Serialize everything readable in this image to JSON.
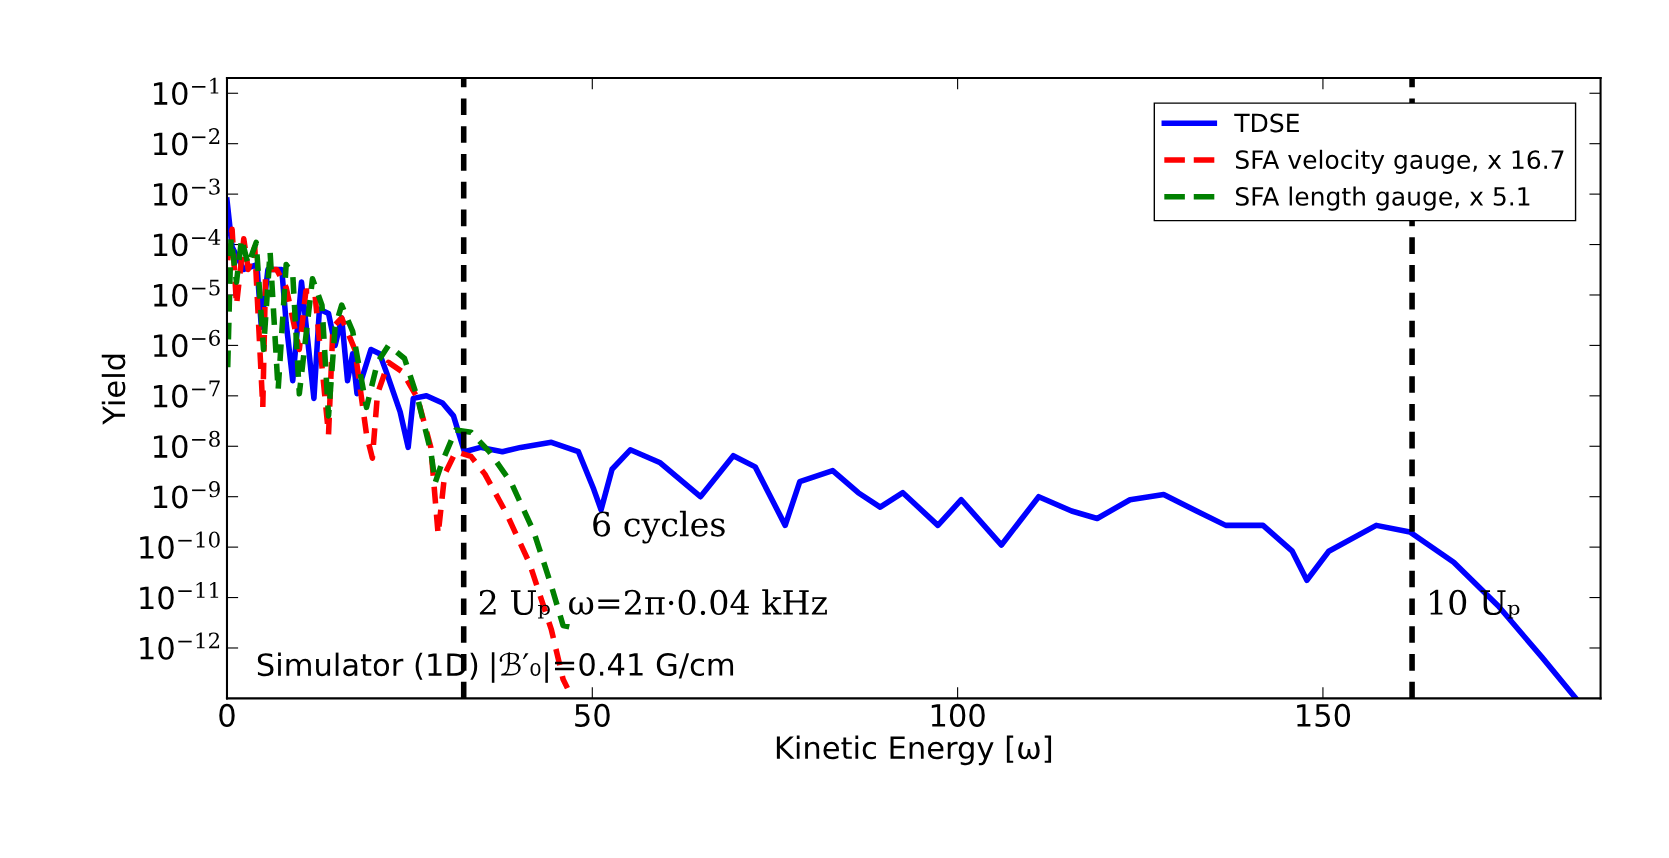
{
  "chart_data": {
    "type": "line",
    "xlabel": "Kinetic Energy [ω]",
    "ylabel": "Yield",
    "log": "y",
    "xlim": [
      0,
      188
    ],
    "ylim": [
      1e-13,
      0.2
    ],
    "xticks": [
      0,
      50,
      100,
      150
    ],
    "yticks": [
      {
        "value": 1e-12,
        "label": "10$^{−12}$"
      },
      {
        "value": 1e-11,
        "label": "10$^{−11}$"
      },
      {
        "value": 1e-10,
        "label": "10$^{−10}$"
      },
      {
        "value": 1e-09,
        "label": "10$^{−9}$"
      },
      {
        "value": 1e-08,
        "label": "10$^{−8}$"
      },
      {
        "value": 1e-07,
        "label": "10$^{−7}$"
      },
      {
        "value": 1e-06,
        "label": "10$^{−6}$"
      },
      {
        "value": 1e-05,
        "label": "10$^{−5}$"
      },
      {
        "value": 0.0001,
        "label": "10$^{−4}$"
      },
      {
        "value": 0.001,
        "label": "10$^{−3}$"
      },
      {
        "value": 0.01,
        "label": "10$^{−2}$"
      },
      {
        "value": 0.1,
        "label": "10$^{−1}$"
      }
    ],
    "grid": false,
    "legend": "top right",
    "marker": "none",
    "series": [
      {
        "name": "TDSE",
        "color": "#0000ff",
        "line_style": "solid",
        "x": [
          0,
          0.7,
          2.3,
          4.1,
          4.7,
          5.6,
          7.5,
          8.1,
          9.0,
          10.2,
          11.9,
          12.65,
          13.9,
          14.8,
          15.7,
          16.5,
          17.2,
          17.8,
          19.7,
          20.9,
          21.8,
          23.7,
          24.8,
          25.5,
          27.3,
          29.5,
          31.0,
          32.5,
          34.7,
          37.7,
          40.2,
          44.4,
          48.1,
          50.2,
          51.2,
          52.7,
          55.2,
          59.3,
          64.8,
          69.3,
          72.3,
          76.4,
          78.4,
          82.9,
          86.4,
          89.4,
          92.5,
          97.3,
          100.5,
          106.0,
          111.1,
          115.6,
          119.1,
          123.6,
          128.2,
          132.7,
          136.7,
          141.8,
          145.8,
          147.8,
          150.8,
          157.3,
          161.9,
          167.9,
          174.0,
          180.0,
          184.5
        ],
        "values": [
          0.00076,
          8.9e-05,
          3.2e-05,
          4e-05,
          2.3e-06,
          3.2e-05,
          3.2e-05,
          2.8e-06,
          2e-07,
          1.8e-05,
          8.9e-08,
          5.2e-06,
          4.3e-06,
          1e-06,
          3.5e-06,
          2e-07,
          6.8e-07,
          1.1e-07,
          8.3e-07,
          6.8e-07,
          3e-07,
          4.8e-08,
          9.5e-09,
          8.9e-08,
          1e-07,
          7.2e-08,
          4e-08,
          7.8e-09,
          9.5e-09,
          7.8e-09,
          9.5e-09,
          1.2e-08,
          7.8e-09,
          1.4e-09,
          5.5e-10,
          3.5e-09,
          8.5e-09,
          4.7e-09,
          1e-09,
          6.5e-09,
          3.9e-09,
          2.7e-10,
          2e-09,
          3.3e-09,
          1.2e-09,
          6.2e-10,
          1.2e-09,
          2.7e-10,
          8.7e-10,
          1.1e-10,
          1e-09,
          5.2e-10,
          3.7e-10,
          8.7e-10,
          1.1e-09,
          5.2e-10,
          2.7e-10,
          2.7e-10,
          8.3e-11,
          2.2e-11,
          8.3e-11,
          2.7e-10,
          2e-10,
          5e-11,
          6.8e-12,
          6.5e-13,
          1.05e-13
        ]
      },
      {
        "name": "SFA velocity gauge, x 16.7",
        "color": "#ff0000",
        "line_style": "dashed",
        "x": [
          0.1,
          0.7,
          1.3,
          2.3,
          2.9,
          3.8,
          4.9,
          5.3,
          6.8,
          8.1,
          9.9,
          10.8,
          12.0,
          13.9,
          14.5,
          15.7,
          17.5,
          19.1,
          19.9,
          20.6,
          22.1,
          24.0,
          26.1,
          27.9,
          28.9,
          29.8,
          31.3,
          33.4,
          35.3,
          38.3,
          41.4,
          44.4,
          46.0,
          46.6
        ],
        "values": [
          4.9e-05,
          0.0002,
          6.3e-06,
          0.00013,
          3.2e-05,
          8.9e-05,
          5.9e-08,
          3.2e-05,
          3.2e-05,
          1.4e-05,
          8.3e-07,
          1.2e-05,
          1.2e-05,
          1.7e-08,
          2.3e-06,
          3.5e-06,
          8.3e-07,
          1.7e-08,
          5.8e-09,
          1.1e-07,
          4.6e-07,
          3e-07,
          8.9e-08,
          9.5e-09,
          1.8e-10,
          2.8e-09,
          7.8e-09,
          6.3e-09,
          2.8e-09,
          4.5e-10,
          4.8e-11,
          2.3e-12,
          2.4e-13,
          1.6e-13
        ]
      },
      {
        "name": "SFA length gauge, x 5.1",
        "color": "#008000",
        "line_style": "dashed",
        "x": [
          0.1,
          0.55,
          1.3,
          2.0,
          2.9,
          4.0,
          5.0,
          5.9,
          7.0,
          8.1,
          9.0,
          9.9,
          11.7,
          13.0,
          13.9,
          14.8,
          15.7,
          17.2,
          19.1,
          20.6,
          22.1,
          24.3,
          26.1,
          27.9,
          28.5,
          29.5,
          31.3,
          33.4,
          35.9,
          38.9,
          42.0,
          44.4,
          46.0,
          47.5
        ],
        "values": [
          3.7e-07,
          0.00013,
          1.8e-05,
          0.00013,
          4e-05,
          0.00011,
          8.3e-07,
          7.2e-05,
          1.3e-07,
          4e-05,
          2.6e-05,
          1.1e-07,
          2.1e-05,
          6.3e-06,
          4e-08,
          2.3e-06,
          6.3e-06,
          1.9e-06,
          5.9e-08,
          4.6e-07,
          1e-06,
          5.5e-07,
          8.9e-08,
          7.8e-09,
          1.9e-09,
          5.1e-09,
          2.1e-08,
          1.9e-08,
          7.8e-09,
          1.9e-09,
          2e-10,
          1.7e-11,
          2.8e-12,
          2.5e-12
        ]
      }
    ],
    "ref_lines": [
      {
        "axis": "x",
        "value": 32.4,
        "label": "2 Uₚ",
        "color": "#000000",
        "line_style": "dashed"
      },
      {
        "axis": "x",
        "value": 162.2,
        "label": "10 Uₚ",
        "color": "#000000",
        "line_style": "dashed"
      }
    ],
    "annotations": [
      "6 cycles",
      "ω=2π·0.04 kHz",
      "Simulator (1D)",
      "|ℬ′₀|=0.41 G/cm"
    ]
  }
}
